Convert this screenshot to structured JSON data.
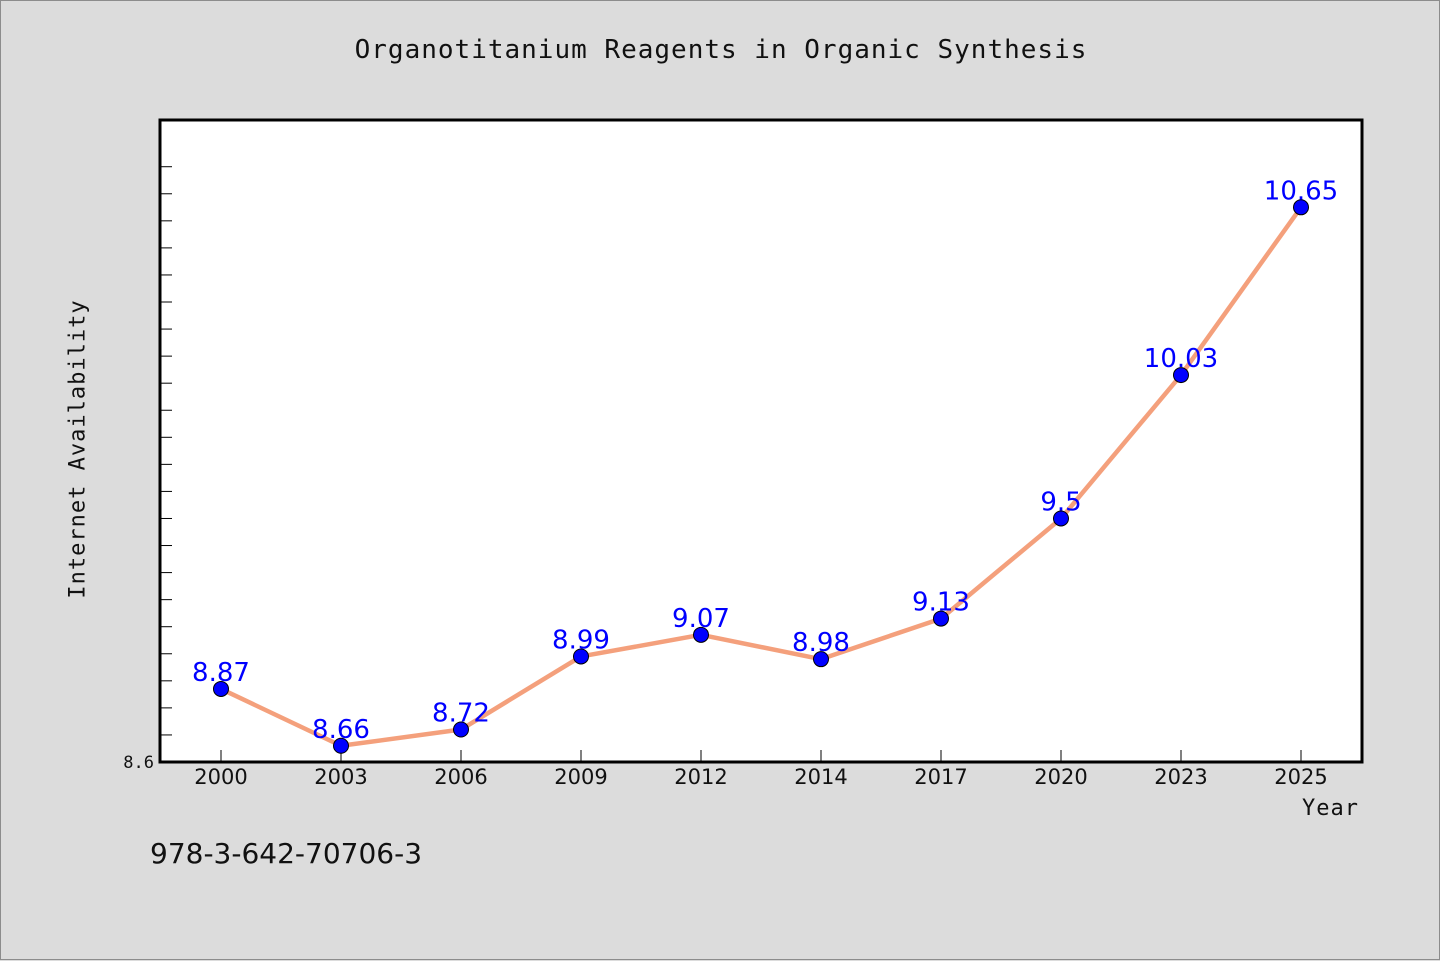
{
  "page": {
    "background": "#dcdcdc",
    "footer_text": "978-3-642-70706-3"
  },
  "chart_data": {
    "type": "line",
    "title": "Organotitanium Reagents in Organic Synthesis",
    "xlabel": "Year",
    "ylabel": "Internet Availability",
    "categories": [
      "2000",
      "2003",
      "2006",
      "2009",
      "2012",
      "2014",
      "2017",
      "2020",
      "2023",
      "2025"
    ],
    "series": [
      {
        "values": [
          8.87,
          8.66,
          8.72,
          8.99,
          9.07,
          8.98,
          9.13,
          9.5,
          10.03,
          10.65
        ],
        "line_color": "#f4a07c",
        "marker_color": "#0000ff"
      }
    ],
    "data_labels": [
      "8.87",
      "8.66",
      "8.72",
      "8.99",
      "9.07",
      "8.98",
      "9.13",
      "9.5",
      "10.03",
      "10.65"
    ],
    "y_min_label": "8.6",
    "ylim": [
      8.6,
      11.0
    ],
    "plot_background": "#ffffff",
    "grid": false,
    "legend": "none"
  }
}
